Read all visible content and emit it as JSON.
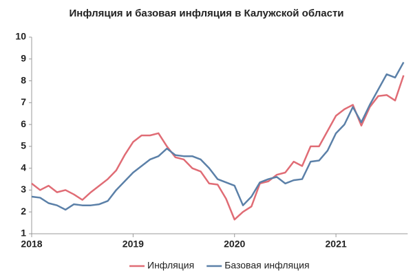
{
  "chart_data": {
    "type": "line",
    "title": "Инфляция и базовая инфляция в Калужской области",
    "categories": [
      "2018",
      null,
      null,
      null,
      null,
      null,
      null,
      null,
      null,
      null,
      null,
      null,
      "2019",
      null,
      null,
      null,
      null,
      null,
      null,
      null,
      null,
      null,
      null,
      null,
      "2020",
      null,
      null,
      null,
      null,
      null,
      null,
      null,
      null,
      null,
      null,
      null,
      "2021",
      null,
      null,
      null,
      null,
      null,
      null,
      null,
      null
    ],
    "series": [
      {
        "name": "Инфляция",
        "color": "#e06c75",
        "values": [
          3.3,
          3.0,
          3.2,
          2.9,
          3.0,
          2.8,
          2.55,
          2.9,
          3.2,
          3.5,
          3.9,
          4.6,
          5.2,
          5.5,
          5.5,
          5.6,
          5.0,
          4.5,
          4.4,
          4.0,
          3.85,
          3.3,
          3.25,
          2.6,
          1.65,
          2.0,
          2.25,
          3.3,
          3.4,
          3.7,
          3.8,
          4.3,
          4.1,
          5.0,
          5.0,
          5.7,
          6.4,
          6.7,
          6.9,
          5.95,
          6.8,
          7.3,
          7.35,
          7.1,
          8.25
        ]
      },
      {
        "name": "Базовая инфляция",
        "color": "#5b80a8",
        "values": [
          2.7,
          2.65,
          2.4,
          2.3,
          2.1,
          2.35,
          2.3,
          2.3,
          2.35,
          2.5,
          3.0,
          3.4,
          3.8,
          4.1,
          4.4,
          4.55,
          4.9,
          4.6,
          4.55,
          4.55,
          4.4,
          4.0,
          3.5,
          3.35,
          3.2,
          2.3,
          2.7,
          3.35,
          3.5,
          3.6,
          3.3,
          3.45,
          3.5,
          4.3,
          4.35,
          4.8,
          5.6,
          6.0,
          6.8,
          6.1,
          6.9,
          7.6,
          8.3,
          8.15,
          8.85
        ]
      }
    ],
    "ylim": [
      1,
      10
    ],
    "yticks": [
      1,
      2,
      3,
      4,
      5,
      6,
      7,
      8,
      9,
      10
    ],
    "grid": false,
    "legend": "bottom"
  }
}
